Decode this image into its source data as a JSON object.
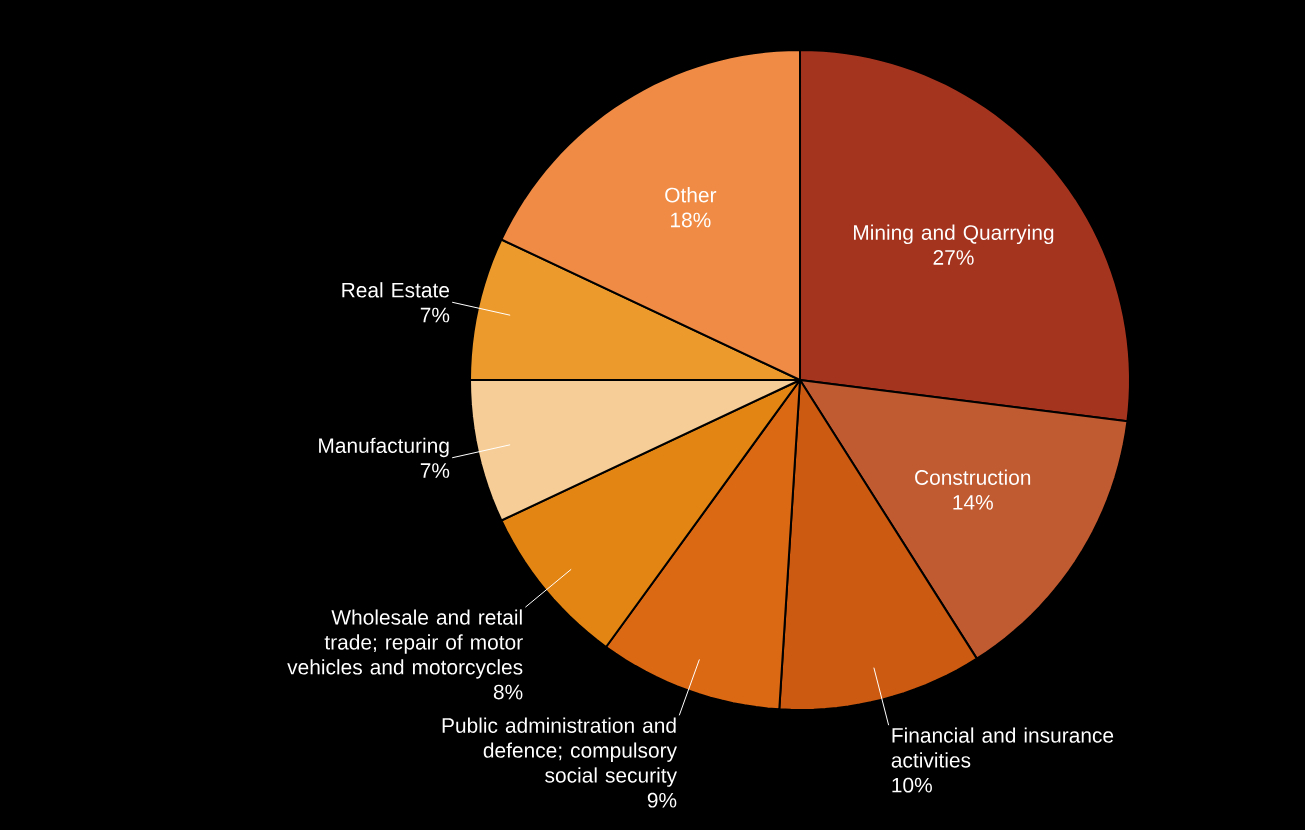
{
  "chart_data": {
    "type": "pie",
    "categories": [
      "Mining and Quarrying",
      "Construction",
      "Financial and insurance activities",
      "Public administration and defence; compulsory social security",
      "Wholesale and retail trade; repair of motor vehicles and motorcycles",
      "Manufacturing",
      "Real Estate",
      "Other"
    ],
    "values": [
      27,
      14,
      10,
      9,
      8,
      7,
      7,
      18
    ],
    "value_labels": [
      "27%",
      "14%",
      "10%",
      "9%",
      "8%",
      "7%",
      "7%",
      "18%"
    ],
    "colors": [
      "#a5341f",
      "#c05a30",
      "#cc5a10",
      "#db6813",
      "#e38513",
      "#f6cd96",
      "#ec9a2c",
      "#ef8b45"
    ]
  }
}
